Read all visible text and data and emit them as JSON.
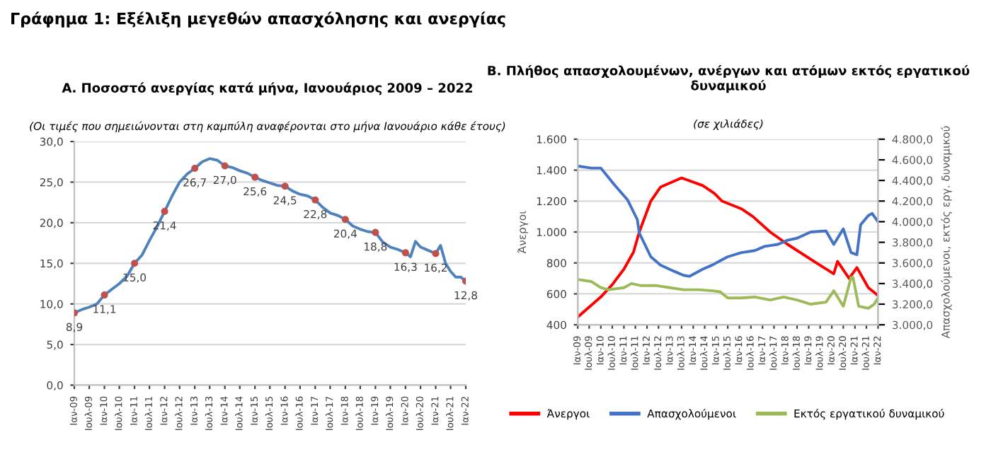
{
  "chart_data": [
    {
      "type": "line",
      "title": "Α. Ποσοστό ανεργίας κατά μήνα, Ιανουάριος 2009 – 2022",
      "subtitle": "(Οι τιμές που σημειώνονται στη καμπύλη αναφέρονται στο μήνα Ιανουάριο κάθε έτους)",
      "annotations": [
        "Γράφημα 1: Εξέλιξη μεγεθών απασχόλησης και ανεργίας"
      ],
      "xlim": [
        "2009-01",
        "2022-01"
      ],
      "xticks": [
        {
          "value": "2009-01",
          "label": "Ιαν-09"
        },
        {
          "value": "2009-07",
          "label": "Ιουλ-09"
        },
        {
          "value": "2010-01",
          "label": "Ιαν-10"
        },
        {
          "value": "2010-07",
          "label": "Ιουλ-10"
        },
        {
          "value": "2011-01",
          "label": "Ιαν-11"
        },
        {
          "value": "2011-07",
          "label": "Ιουλ-11"
        },
        {
          "value": "2012-01",
          "label": "Ιαν-12"
        },
        {
          "value": "2012-07",
          "label": "Ιουλ-12"
        },
        {
          "value": "2013-01",
          "label": "Ιαν-13"
        },
        {
          "value": "2013-07",
          "label": "Ιουλ-13"
        },
        {
          "value": "2014-01",
          "label": "Ιαν-14"
        },
        {
          "value": "2014-07",
          "label": "Ιουλ-14"
        },
        {
          "value": "2015-01",
          "label": "Ιαν-15"
        },
        {
          "value": "2015-07",
          "label": "Ιουλ-15"
        },
        {
          "value": "2016-01",
          "label": "Ιαν-16"
        },
        {
          "value": "2016-07",
          "label": "Ιουλ-16"
        },
        {
          "value": "2017-01",
          "label": "Ιαν-17"
        },
        {
          "value": "2017-07",
          "label": "Ιουλ-17"
        },
        {
          "value": "2018-01",
          "label": "Ιαν-18"
        },
        {
          "value": "2018-07",
          "label": "Ιουλ-18"
        },
        {
          "value": "2019-01",
          "label": "Ιαν-19"
        },
        {
          "value": "2019-07",
          "label": "Ιουλ-19"
        },
        {
          "value": "2020-01",
          "label": "Ιαν-20"
        },
        {
          "value": "2020-07",
          "label": "Ιουλ-20"
        },
        {
          "value": "2021-01",
          "label": "Ιαν-21"
        },
        {
          "value": "2021-07",
          "label": "Ιουλ-21"
        },
        {
          "value": "2022-01",
          "label": "Ιαν-22"
        }
      ],
      "ylim": [
        0,
        30
      ],
      "yticks": [
        {
          "value": 0,
          "label": "0,0"
        },
        {
          "value": 5,
          "label": "5,0"
        },
        {
          "value": 10,
          "label": "10,0"
        },
        {
          "value": 15,
          "label": "15,0"
        },
        {
          "value": 20,
          "label": "20,0"
        },
        {
          "value": 25,
          "label": "25,0"
        },
        {
          "value": 30,
          "label": "30,0"
        }
      ],
      "grid": "y",
      "series": [
        {
          "type": "line",
          "color": "#4f81bd",
          "x": [
            "2009-01",
            "2009-04",
            "2009-07",
            "2009-10",
            "2010-01",
            "2010-04",
            "2010-07",
            "2010-10",
            "2011-01",
            "2011-04",
            "2011-07",
            "2011-10",
            "2012-01",
            "2012-04",
            "2012-07",
            "2012-10",
            "2013-01",
            "2013-04",
            "2013-07",
            "2013-10",
            "2014-01",
            "2014-04",
            "2014-07",
            "2014-10",
            "2015-01",
            "2015-04",
            "2015-07",
            "2015-10",
            "2016-01",
            "2016-04",
            "2016-07",
            "2016-10",
            "2017-01",
            "2017-04",
            "2017-07",
            "2017-10",
            "2018-01",
            "2018-04",
            "2018-07",
            "2018-10",
            "2019-01",
            "2019-04",
            "2019-07",
            "2019-10",
            "2020-01",
            "2020-03",
            "2020-05",
            "2020-07",
            "2020-10",
            "2021-01",
            "2021-03",
            "2021-05",
            "2021-07",
            "2021-09",
            "2021-11",
            "2022-01"
          ],
          "values": [
            8.9,
            9.3,
            9.6,
            10.0,
            11.1,
            11.8,
            12.5,
            13.4,
            15.0,
            16.0,
            17.8,
            19.5,
            21.4,
            23.3,
            25.0,
            26.0,
            26.7,
            27.5,
            27.9,
            27.7,
            27.0,
            26.8,
            26.4,
            26.1,
            25.6,
            25.2,
            24.9,
            24.6,
            24.5,
            23.9,
            23.5,
            23.3,
            22.8,
            21.9,
            21.2,
            20.9,
            20.4,
            19.6,
            19.2,
            18.9,
            18.8,
            17.6,
            17.0,
            16.7,
            16.3,
            15.8,
            17.7,
            17.0,
            16.6,
            16.2,
            17.2,
            15.0,
            14.0,
            13.3,
            13.3,
            12.8
          ]
        },
        {
          "type": "scatter",
          "color": "#c0504d",
          "marker": "circle",
          "x": [
            "2009-01",
            "2010-01",
            "2011-01",
            "2012-01",
            "2013-01",
            "2014-01",
            "2015-01",
            "2016-01",
            "2017-01",
            "2018-01",
            "2019-01",
            "2020-01",
            "2021-01",
            "2022-01"
          ],
          "values": [
            8.9,
            11.1,
            15.0,
            21.4,
            26.7,
            27.0,
            25.6,
            24.5,
            22.8,
            20.4,
            18.8,
            16.3,
            16.2,
            12.8
          ],
          "value_labels": [
            "8,9",
            "11,1",
            "15,0",
            "21,4",
            "26,7",
            "27,0",
            "25,6",
            "24,5",
            "22,8",
            "20,4",
            "18,8",
            "16,3",
            "16,2",
            "12,8"
          ]
        }
      ]
    },
    {
      "type": "line",
      "title": "Β. Πλήθος απασχολουμένων, ανέργων και ατόμων εκτός εργατικού δυναμικού",
      "subtitle": "(σε χιλιάδες)",
      "ylabel": "Άνεργοι",
      "y2label": "Απασχολούμενοι, εκτός εργ. δυναμικού",
      "xlim": [
        "2009-01",
        "2022-01"
      ],
      "xticks": [
        {
          "value": "2009-01",
          "label": "Ιαν-09"
        },
        {
          "value": "2009-07",
          "label": "Ιουλ-09"
        },
        {
          "value": "2010-01",
          "label": "Ιαν-10"
        },
        {
          "value": "2010-07",
          "label": "Ιουλ-10"
        },
        {
          "value": "2011-01",
          "label": "Ιαν-11"
        },
        {
          "value": "2011-07",
          "label": "Ιουλ-11"
        },
        {
          "value": "2012-01",
          "label": "Ιαν-12"
        },
        {
          "value": "2012-07",
          "label": "Ιουλ-12"
        },
        {
          "value": "2013-01",
          "label": "Ιαν-13"
        },
        {
          "value": "2013-07",
          "label": "Ιουλ-13"
        },
        {
          "value": "2014-01",
          "label": "Ιαν-14"
        },
        {
          "value": "2014-07",
          "label": "Ιουλ-14"
        },
        {
          "value": "2015-01",
          "label": "Ιαν-15"
        },
        {
          "value": "2015-07",
          "label": "Ιουλ-15"
        },
        {
          "value": "2016-01",
          "label": "Ιαν-16"
        },
        {
          "value": "2016-07",
          "label": "Ιουλ-16"
        },
        {
          "value": "2017-01",
          "label": "Ιαν-17"
        },
        {
          "value": "2017-07",
          "label": "Ιουλ-17"
        },
        {
          "value": "2018-01",
          "label": "Ιαν-18"
        },
        {
          "value": "2018-07",
          "label": "Ιουλ-18"
        },
        {
          "value": "2019-01",
          "label": "Ιαν-19"
        },
        {
          "value": "2019-07",
          "label": "Ιουλ-19"
        },
        {
          "value": "2020-01",
          "label": "Ιαν-20"
        },
        {
          "value": "2020-07",
          "label": "Ιουλ-20"
        },
        {
          "value": "2021-01",
          "label": "Ιαν-21"
        },
        {
          "value": "2021-07",
          "label": "Ιουλ-21"
        },
        {
          "value": "2022-01",
          "label": "Ιαν-22"
        }
      ],
      "ylim": [
        400,
        1600
      ],
      "yticks": [
        400,
        600,
        800,
        {
          "value": 1000,
          "label": "1.000"
        },
        {
          "value": 1200,
          "label": "1.200"
        },
        {
          "value": 1400,
          "label": "1.400"
        },
        {
          "value": 1600,
          "label": "1.600"
        }
      ],
      "y2lim": [
        3000,
        4800
      ],
      "y2ticks": [
        {
          "value": 3000,
          "label": "3.000,0"
        },
        {
          "value": 3200,
          "label": "3.200,0"
        },
        {
          "value": 3400,
          "label": "3.400,0"
        },
        {
          "value": 3600,
          "label": "3.600,0"
        },
        {
          "value": 3800,
          "label": "3.800,0"
        },
        {
          "value": 4000,
          "label": "4.000,0"
        },
        {
          "value": 4200,
          "label": "4.200,0"
        },
        {
          "value": 4400,
          "label": "4.400,0"
        },
        {
          "value": 4600,
          "label": "4.600,0"
        },
        {
          "value": 4800,
          "label": "4.800,0"
        }
      ],
      "grid": "y",
      "legend": "bottom",
      "series": [
        {
          "name": "Άνεργοι",
          "color": "#ff0000",
          "x": [
            "2009-01",
            "2010-01",
            "2010-07",
            "2011-01",
            "2011-06",
            "2011-09",
            "2012-03",
            "2012-08",
            "2013-07",
            "2014-06",
            "2014-12",
            "2015-04",
            "2016-02",
            "2016-08",
            "2017-05",
            "2018-02",
            "2019-05",
            "2020-02",
            "2020-04",
            "2020-10",
            "2021-02",
            "2021-08",
            "2022-01"
          ],
          "values": [
            450,
            580,
            660,
            760,
            870,
            1000,
            1200,
            1290,
            1350,
            1300,
            1250,
            1200,
            1150,
            1100,
            1000,
            920,
            800,
            730,
            810,
            700,
            770,
            640,
            590
          ]
        },
        {
          "name": "Απασχολούμενοι",
          "color": "#4472c4",
          "axis": "y2",
          "x": [
            "2009-01",
            "2009-08",
            "2010-01",
            "2010-08",
            "2011-03",
            "2011-08",
            "2011-09",
            "2012-03",
            "2012-08",
            "2013-03",
            "2013-08",
            "2013-11",
            "2014-06",
            "2014-11",
            "2015-03",
            "2015-07",
            "2016-02",
            "2016-09",
            "2017-02",
            "2017-09",
            "2018-02",
            "2018-07",
            "2019-02",
            "2019-10",
            "2020-02",
            "2020-07",
            "2020-11",
            "2021-02",
            "2021-04",
            "2021-08",
            "2021-10",
            "2022-01"
          ],
          "values": [
            4540,
            4520,
            4520,
            4360,
            4210,
            4020,
            3890,
            3660,
            3580,
            3520,
            3480,
            3470,
            3540,
            3580,
            3620,
            3660,
            3700,
            3720,
            3760,
            3780,
            3820,
            3840,
            3900,
            3910,
            3780,
            3930,
            3700,
            3680,
            3970,
            4060,
            4080,
            4000
          ]
        },
        {
          "name": "Εκτός εργατικού δυναμικού",
          "color": "#9bbb59",
          "axis": "y2",
          "x": [
            "2009-01",
            "2009-08",
            "2010-01",
            "2010-05",
            "2011-01",
            "2011-05",
            "2011-10",
            "2012-06",
            "2013-01",
            "2013-08",
            "2014-04",
            "2014-11",
            "2015-03",
            "2015-07",
            "2016-02",
            "2016-09",
            "2017-05",
            "2017-12",
            "2018-07",
            "2019-02",
            "2019-10",
            "2020-02",
            "2020-07",
            "2020-11",
            "2020-12",
            "2021-03",
            "2021-08",
            "2021-11",
            "2022-01"
          ],
          "values": [
            3440,
            3420,
            3360,
            3340,
            3360,
            3400,
            3380,
            3380,
            3360,
            3340,
            3340,
            3330,
            3320,
            3260,
            3260,
            3270,
            3240,
            3270,
            3240,
            3200,
            3220,
            3330,
            3180,
            3460,
            3460,
            3180,
            3160,
            3200,
            3260
          ]
        }
      ]
    }
  ]
}
